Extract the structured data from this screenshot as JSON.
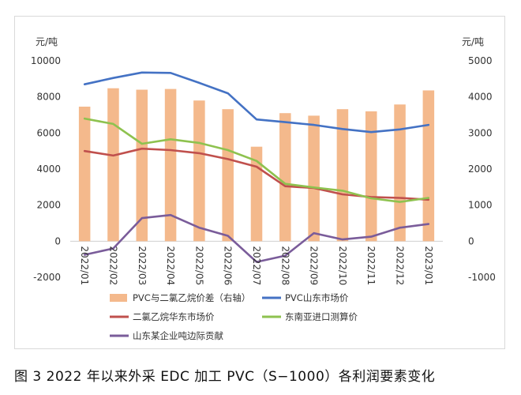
{
  "caption": "图 3  2022 年以来外采 EDC 加工 PVC（S−1000）各利润要素变化",
  "chart_data": {
    "type": "bar+line",
    "categories": [
      "2022/01",
      "2022/02",
      "2022/03",
      "2022/04",
      "2022/05",
      "2022/06",
      "2022/07",
      "2022/08",
      "2022/09",
      "2022/10",
      "2022/11",
      "2022/12",
      "2023/01"
    ],
    "left_axis": {
      "unit": "元/吨",
      "ylim": [
        -2000,
        10000
      ],
      "ticks": [
        -2000,
        0,
        2000,
        4000,
        6000,
        8000,
        10000
      ]
    },
    "right_axis": {
      "unit": "元/吨",
      "ylim": [
        -1000,
        5000
      ],
      "ticks": [
        -1000,
        0,
        1000,
        2000,
        3000,
        4000,
        5000
      ]
    },
    "bar_series": [
      {
        "name": "PVC与二氯乙烷价差（右轴）",
        "axis": "right",
        "color": "#f4b98c",
        "values": [
          3730,
          4240,
          4200,
          4220,
          3900,
          3660,
          2620,
          3550,
          3480,
          3660,
          3600,
          3790,
          4180
        ]
      }
    ],
    "line_series": [
      {
        "name": "PVC山东市场价",
        "axis": "left",
        "color": "#4472c4",
        "values": [
          8700,
          9050,
          9350,
          9330,
          8780,
          8200,
          6750,
          6600,
          6450,
          6220,
          6050,
          6200,
          6450
        ]
      },
      {
        "name": "二氯乙烷华东市场价",
        "axis": "left",
        "color": "#c0504d",
        "values": [
          5000,
          4750,
          5130,
          5050,
          4880,
          4550,
          4130,
          3050,
          2950,
          2600,
          2450,
          2400,
          2300
        ]
      },
      {
        "name": "东南亚进口测算价",
        "axis": "left",
        "color": "#8ec24f",
        "values": [
          6800,
          6500,
          5400,
          5650,
          5450,
          5050,
          4450,
          3180,
          2980,
          2800,
          2380,
          2180,
          2400
        ]
      },
      {
        "name": "山东某企业吨边际贡献",
        "axis": "left",
        "color": "#7a5c9a",
        "values": [
          -750,
          -400,
          1280,
          1450,
          750,
          300,
          -1150,
          -800,
          450,
          100,
          250,
          750,
          950
        ]
      }
    ],
    "legend_order": [
      "PVC与二氯乙烷价差（右轴）",
      "PVC山东市场价",
      "二氯乙烷华东市场价",
      "东南亚进口测算价",
      "山东某企业吨边际贡献"
    ],
    "legend_position": "bottom",
    "grid": false
  }
}
